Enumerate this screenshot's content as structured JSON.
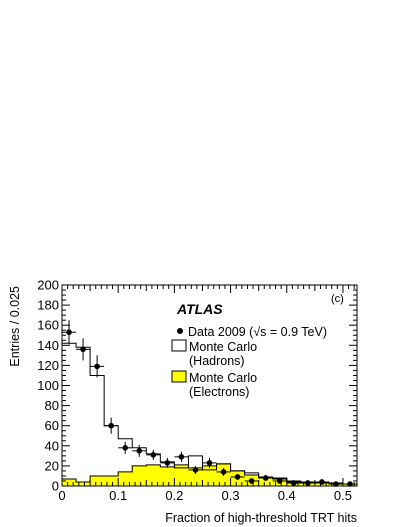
{
  "chart_data": {
    "type": "histogram",
    "experiment_label": "ATLAS",
    "panel_label": "(c)",
    "xlabel": "Fraction of high-threshold TRT hits",
    "ylabel": "Entries / 0.025",
    "xlim": [
      0,
      0.525
    ],
    "ylim": [
      0,
      200
    ],
    "x_ticks": [
      0,
      0.1,
      0.2,
      0.3,
      0.4,
      0.5
    ],
    "x_tick_labels": [
      "0",
      "0.1",
      "0.2",
      "0.3",
      "0.4",
      "0.5"
    ],
    "y_ticks": [
      0,
      20,
      40,
      60,
      80,
      100,
      120,
      140,
      160,
      180,
      200
    ],
    "y_tick_labels": [
      "0",
      "20",
      "40",
      "60",
      "80",
      "100",
      "120",
      "140",
      "160",
      "180",
      "200"
    ],
    "bin_edges": [
      0,
      0.025,
      0.05,
      0.075,
      0.1,
      0.125,
      0.15,
      0.175,
      0.2,
      0.225,
      0.25,
      0.275,
      0.3,
      0.325,
      0.35,
      0.375,
      0.4,
      0.425,
      0.45,
      0.475,
      0.5,
      0.525
    ],
    "series": [
      {
        "name": "Monte Carlo (Hadrons)",
        "kind": "step",
        "color": "#000000",
        "fill": "none",
        "values": [
          142,
          138,
          110,
          60,
          47,
          38,
          32,
          24,
          18,
          30,
          16,
          22,
          15,
          13,
          9,
          8,
          5,
          4,
          4,
          3,
          2
        ]
      },
      {
        "name": "Monte Carlo (Electrons)",
        "kind": "step-filled",
        "color": "#000000",
        "fill": "#ffff00",
        "values": [
          7,
          4,
          10,
          10,
          14,
          20,
          21,
          19,
          21,
          18,
          20,
          22,
          15,
          11,
          8,
          7,
          4,
          3,
          3,
          2,
          2
        ]
      },
      {
        "name": "Data 2009",
        "kind": "points",
        "color": "#000000",
        "points": [
          {
            "x": 0.0125,
            "y": 153,
            "err": 12
          },
          {
            "x": 0.0375,
            "y": 136,
            "err": 11
          },
          {
            "x": 0.0625,
            "y": 119,
            "err": 11
          },
          {
            "x": 0.0875,
            "y": 60,
            "err": 8
          },
          {
            "x": 0.1125,
            "y": 38,
            "err": 6
          },
          {
            "x": 0.1375,
            "y": 35,
            "err": 6
          },
          {
            "x": 0.1625,
            "y": 31,
            "err": 5
          },
          {
            "x": 0.1875,
            "y": 23,
            "err": 5
          },
          {
            "x": 0.2125,
            "y": 29,
            "err": 5
          },
          {
            "x": 0.2375,
            "y": 16,
            "err": 4
          },
          {
            "x": 0.2625,
            "y": 23,
            "err": 5
          },
          {
            "x": 0.2875,
            "y": 14,
            "err": 4
          },
          {
            "x": 0.3125,
            "y": 9,
            "err": 3
          },
          {
            "x": 0.3375,
            "y": 5,
            "err": 2
          },
          {
            "x": 0.3625,
            "y": 8,
            "err": 3
          },
          {
            "x": 0.3875,
            "y": 5,
            "err": 2
          },
          {
            "x": 0.4125,
            "y": 3,
            "err": 2
          },
          {
            "x": 0.4375,
            "y": 3,
            "err": 2
          },
          {
            "x": 0.4625,
            "y": 4,
            "err": 2
          },
          {
            "x": 0.4875,
            "y": 2,
            "err": 1
          },
          {
            "x": 0.5125,
            "y": 2,
            "err": 1
          }
        ]
      }
    ],
    "legend": {
      "placement": "top-right",
      "entries": [
        {
          "marker": "point",
          "lines": [
            "Data 2009 (√s = 0.9 TeV)"
          ]
        },
        {
          "marker": "open-box",
          "lines": [
            "Monte Carlo",
            "(Hadrons)"
          ]
        },
        {
          "marker": "yellow-box",
          "lines": [
            "Monte Carlo",
            "(Electrons)"
          ]
        }
      ]
    }
  }
}
